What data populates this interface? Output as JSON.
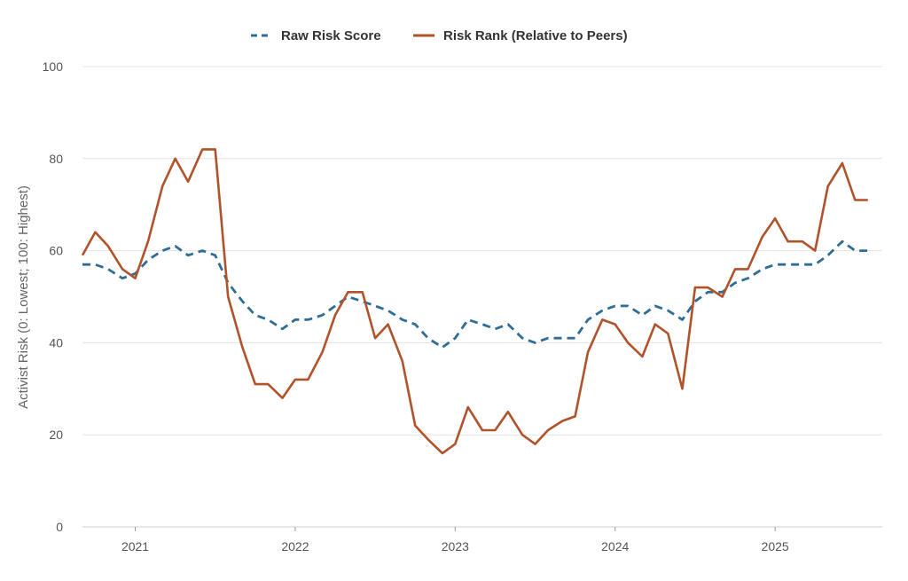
{
  "chart_data": {
    "type": "line",
    "title": "",
    "ylabel": "Activist Risk (0: Lowest; 100: Highest)",
    "xlabel": "",
    "ylim": [
      0,
      100
    ],
    "yticks": [
      0,
      20,
      40,
      60,
      80,
      100
    ],
    "xlim": [
      2020.67,
      2025.67
    ],
    "xticks": [
      {
        "value": 2021.0,
        "label": "2021"
      },
      {
        "value": 2022.0,
        "label": "2022"
      },
      {
        "value": 2023.0,
        "label": "2023"
      },
      {
        "value": 2024.0,
        "label": "2024"
      },
      {
        "value": 2025.0,
        "label": "2025"
      }
    ],
    "grid": "horizontal",
    "legend_position": "top-center",
    "series": [
      {
        "name": "Raw Risk Score",
        "color": "#2e6e96",
        "style": "dashed",
        "points": [
          [
            2020.67,
            57
          ],
          [
            2020.75,
            57
          ],
          [
            2020.83,
            56
          ],
          [
            2020.92,
            54
          ],
          [
            2021.0,
            55
          ],
          [
            2021.08,
            58
          ],
          [
            2021.17,
            60
          ],
          [
            2021.25,
            61
          ],
          [
            2021.33,
            59
          ],
          [
            2021.42,
            60
          ],
          [
            2021.5,
            59
          ],
          [
            2021.58,
            53
          ],
          [
            2021.67,
            49
          ],
          [
            2021.75,
            46
          ],
          [
            2021.83,
            45
          ],
          [
            2021.92,
            43
          ],
          [
            2022.0,
            45
          ],
          [
            2022.08,
            45
          ],
          [
            2022.17,
            46
          ],
          [
            2022.25,
            48
          ],
          [
            2022.33,
            50
          ],
          [
            2022.42,
            49
          ],
          [
            2022.5,
            48
          ],
          [
            2022.58,
            47
          ],
          [
            2022.67,
            45
          ],
          [
            2022.75,
            44
          ],
          [
            2022.83,
            41
          ],
          [
            2022.92,
            39
          ],
          [
            2023.0,
            41
          ],
          [
            2023.08,
            45
          ],
          [
            2023.17,
            44
          ],
          [
            2023.25,
            43
          ],
          [
            2023.33,
            44
          ],
          [
            2023.42,
            41
          ],
          [
            2023.5,
            40
          ],
          [
            2023.58,
            41
          ],
          [
            2023.67,
            41
          ],
          [
            2023.75,
            41
          ],
          [
            2023.83,
            45
          ],
          [
            2023.92,
            47
          ],
          [
            2024.0,
            48
          ],
          [
            2024.08,
            48
          ],
          [
            2024.17,
            46
          ],
          [
            2024.25,
            48
          ],
          [
            2024.33,
            47
          ],
          [
            2024.42,
            45
          ],
          [
            2024.5,
            49
          ],
          [
            2024.58,
            51
          ],
          [
            2024.67,
            51
          ],
          [
            2024.75,
            53
          ],
          [
            2024.83,
            54
          ],
          [
            2024.92,
            56
          ],
          [
            2025.0,
            57
          ],
          [
            2025.08,
            57
          ],
          [
            2025.17,
            57
          ],
          [
            2025.25,
            57
          ],
          [
            2025.33,
            59
          ],
          [
            2025.42,
            62
          ],
          [
            2025.5,
            60
          ],
          [
            2025.58,
            60
          ]
        ]
      },
      {
        "name": "Risk Rank (Relative to Peers)",
        "color": "#b0522a",
        "style": "solid",
        "points": [
          [
            2020.67,
            59
          ],
          [
            2020.75,
            64
          ],
          [
            2020.83,
            61
          ],
          [
            2020.92,
            56
          ],
          [
            2021.0,
            54
          ],
          [
            2021.08,
            62
          ],
          [
            2021.17,
            74
          ],
          [
            2021.25,
            80
          ],
          [
            2021.33,
            75
          ],
          [
            2021.42,
            82
          ],
          [
            2021.5,
            82
          ],
          [
            2021.58,
            50
          ],
          [
            2021.67,
            39
          ],
          [
            2021.75,
            31
          ],
          [
            2021.83,
            31
          ],
          [
            2021.92,
            28
          ],
          [
            2022.0,
            32
          ],
          [
            2022.08,
            32
          ],
          [
            2022.17,
            38
          ],
          [
            2022.25,
            46
          ],
          [
            2022.33,
            51
          ],
          [
            2022.42,
            51
          ],
          [
            2022.5,
            41
          ],
          [
            2022.58,
            44
          ],
          [
            2022.67,
            36
          ],
          [
            2022.75,
            22
          ],
          [
            2022.83,
            19
          ],
          [
            2022.92,
            16
          ],
          [
            2023.0,
            18
          ],
          [
            2023.08,
            26
          ],
          [
            2023.17,
            21
          ],
          [
            2023.25,
            21
          ],
          [
            2023.33,
            25
          ],
          [
            2023.42,
            20
          ],
          [
            2023.5,
            18
          ],
          [
            2023.58,
            21
          ],
          [
            2023.67,
            23
          ],
          [
            2023.75,
            24
          ],
          [
            2023.83,
            38
          ],
          [
            2023.92,
            45
          ],
          [
            2024.0,
            44
          ],
          [
            2024.08,
            40
          ],
          [
            2024.17,
            37
          ],
          [
            2024.25,
            44
          ],
          [
            2024.33,
            42
          ],
          [
            2024.42,
            30
          ],
          [
            2024.5,
            52
          ],
          [
            2024.58,
            52
          ],
          [
            2024.67,
            50
          ],
          [
            2024.75,
            56
          ],
          [
            2024.83,
            56
          ],
          [
            2024.92,
            63
          ],
          [
            2025.0,
            67
          ],
          [
            2025.08,
            62
          ],
          [
            2025.17,
            62
          ],
          [
            2025.25,
            60
          ],
          [
            2025.33,
            74
          ],
          [
            2025.42,
            79
          ],
          [
            2025.5,
            71
          ],
          [
            2025.58,
            71
          ]
        ]
      }
    ]
  }
}
